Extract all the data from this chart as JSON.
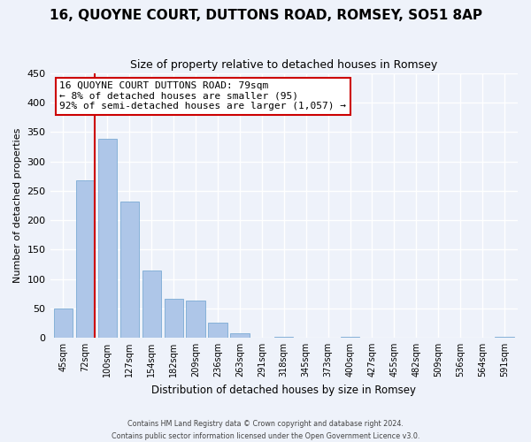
{
  "title": "16, QUOYNE COURT, DUTTONS ROAD, ROMSEY, SO51 8AP",
  "subtitle": "Size of property relative to detached houses in Romsey",
  "xlabel": "Distribution of detached houses by size in Romsey",
  "ylabel": "Number of detached properties",
  "footer_line1": "Contains HM Land Registry data © Crown copyright and database right 2024.",
  "footer_line2": "Contains public sector information licensed under the Open Government Licence v3.0.",
  "bar_labels": [
    "45sqm",
    "72sqm",
    "100sqm",
    "127sqm",
    "154sqm",
    "182sqm",
    "209sqm",
    "236sqm",
    "263sqm",
    "291sqm",
    "318sqm",
    "345sqm",
    "373sqm",
    "400sqm",
    "427sqm",
    "455sqm",
    "482sqm",
    "509sqm",
    "536sqm",
    "564sqm",
    "591sqm"
  ],
  "bar_values": [
    50,
    268,
    338,
    232,
    115,
    66,
    63,
    25,
    7,
    0,
    2,
    0,
    0,
    2,
    0,
    0,
    0,
    0,
    0,
    0,
    2
  ],
  "bar_color": "#aec6e8",
  "bar_edge_color": "#7baad4",
  "ylim": [
    0,
    450
  ],
  "yticks": [
    0,
    50,
    100,
    150,
    200,
    250,
    300,
    350,
    400,
    450
  ],
  "annotation_title": "16 QUOYNE COURT DUTTONS ROAD: 79sqm",
  "annotation_line2": "← 8% of detached houses are smaller (95)",
  "annotation_line3": "92% of semi-detached houses are larger (1,057) →",
  "box_color": "#ffffff",
  "box_edge_color": "#cc0000",
  "vline_color": "#cc0000",
  "background_color": "#eef2fa",
  "title_fontsize": 11,
  "subtitle_fontsize": 9
}
